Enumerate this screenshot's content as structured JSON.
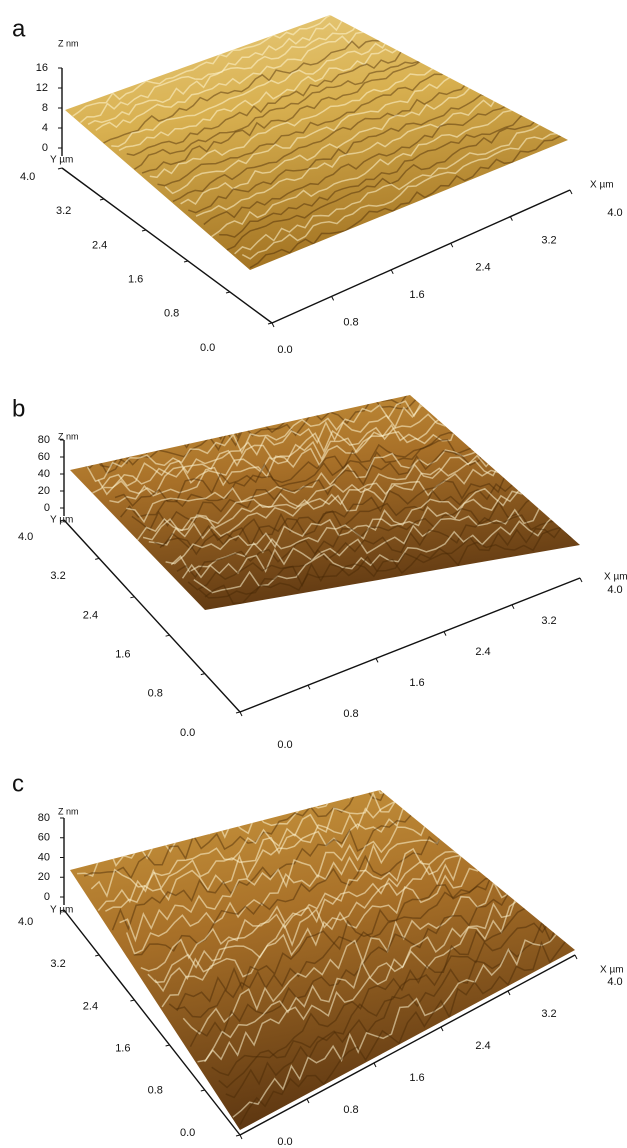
{
  "panels": [
    {
      "label": "a",
      "z_axis_label": "Z nm",
      "z_ticks": [
        "16",
        "12",
        "8",
        "4",
        "0"
      ],
      "y_axis_label": "Y µm",
      "y_ticks": [
        "4.0",
        "3.2",
        "2.4",
        "1.6",
        "0.8",
        "0.0"
      ],
      "x_axis_label": "X µm",
      "x_ticks": [
        "0.0",
        "0.8",
        "1.6",
        "2.4",
        "3.2",
        "4.0"
      ]
    },
    {
      "label": "b",
      "z_axis_label": "Z nm",
      "z_ticks": [
        "80",
        "60",
        "40",
        "20",
        "0"
      ],
      "y_axis_label": "Y µm",
      "y_ticks": [
        "4.0",
        "3.2",
        "2.4",
        "1.6",
        "0.8",
        "0.0"
      ],
      "x_axis_label": "X µm",
      "x_ticks": [
        "0.0",
        "0.8",
        "1.6",
        "2.4",
        "3.2",
        "4.0"
      ]
    },
    {
      "label": "c",
      "z_axis_label": "Z nm",
      "z_ticks": [
        "80",
        "60",
        "40",
        "20",
        "0"
      ],
      "y_axis_label": "Y µm",
      "y_ticks": [
        "4.0",
        "3.2",
        "2.4",
        "1.6",
        "0.8",
        "0.0"
      ],
      "x_axis_label": "X µm",
      "x_ticks": [
        "0.0",
        "0.8",
        "1.6",
        "2.4",
        "3.2",
        "4.0"
      ]
    }
  ]
}
